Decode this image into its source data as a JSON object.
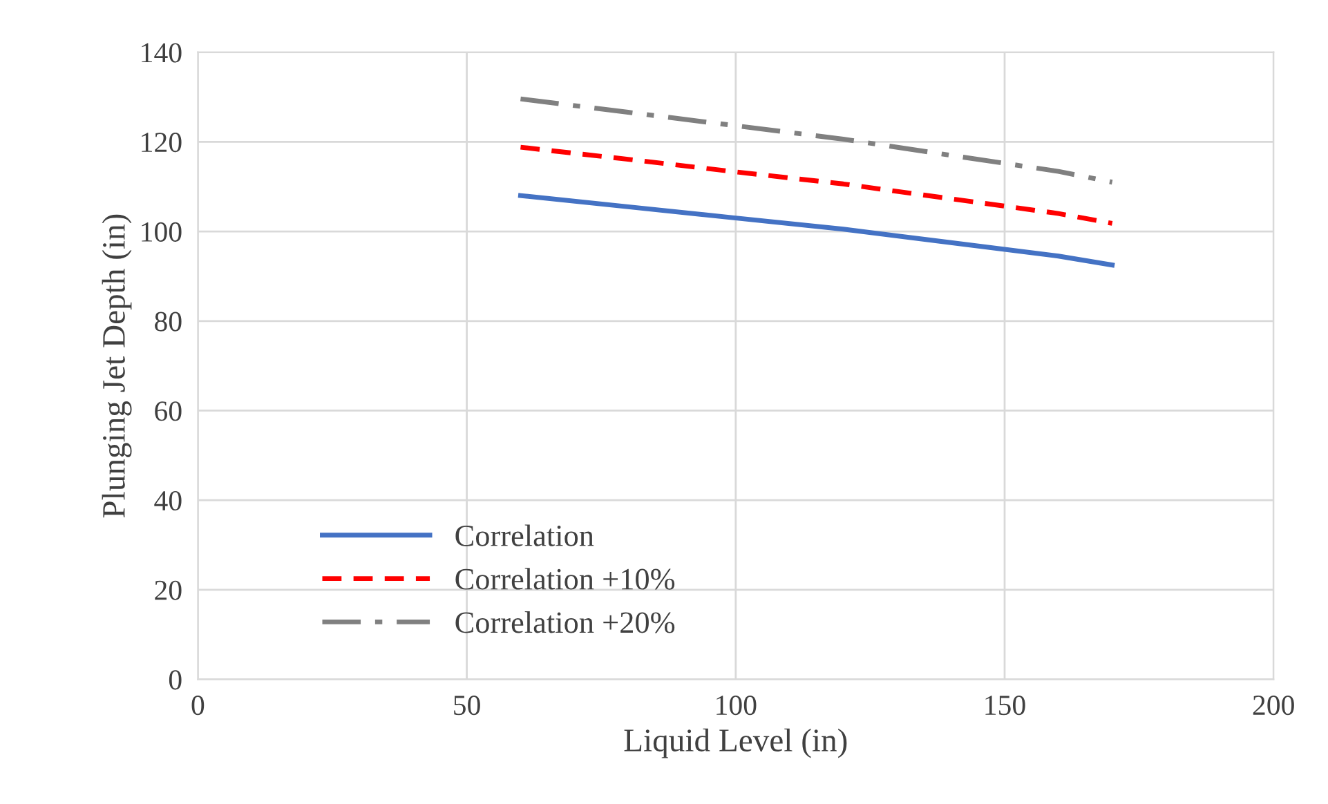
{
  "chart_data": {
    "type": "line",
    "xlabel": "Liquid Level (in)",
    "ylabel": "Plunging Jet Depth (in)",
    "x": [
      60,
      80,
      100,
      120,
      140,
      160,
      170
    ],
    "series": [
      {
        "name": "Correlation",
        "color": "#4472c4",
        "line_style": "solid",
        "values": [
          108,
          105.5,
          103,
          100.5,
          97.5,
          94.5,
          92.5
        ]
      },
      {
        "name": "Correlation +10%",
        "color": "#ff0000",
        "line_style": "dashed",
        "values": [
          118.8,
          116.1,
          113.3,
          110.6,
          107.3,
          104,
          101.8
        ]
      },
      {
        "name": "Correlation +20%",
        "color": "#808080",
        "line_style": "dashdot",
        "values": [
          129.6,
          126.6,
          123.6,
          120.6,
          117,
          113.4,
          111
        ]
      }
    ],
    "xlim": [
      0,
      200
    ],
    "xticks": [
      0,
      50,
      100,
      150,
      200
    ],
    "ylim": [
      0,
      140
    ],
    "yticks": [
      0,
      20,
      40,
      60,
      80,
      100,
      120,
      140
    ],
    "grid": true,
    "legend": "bottom left"
  }
}
